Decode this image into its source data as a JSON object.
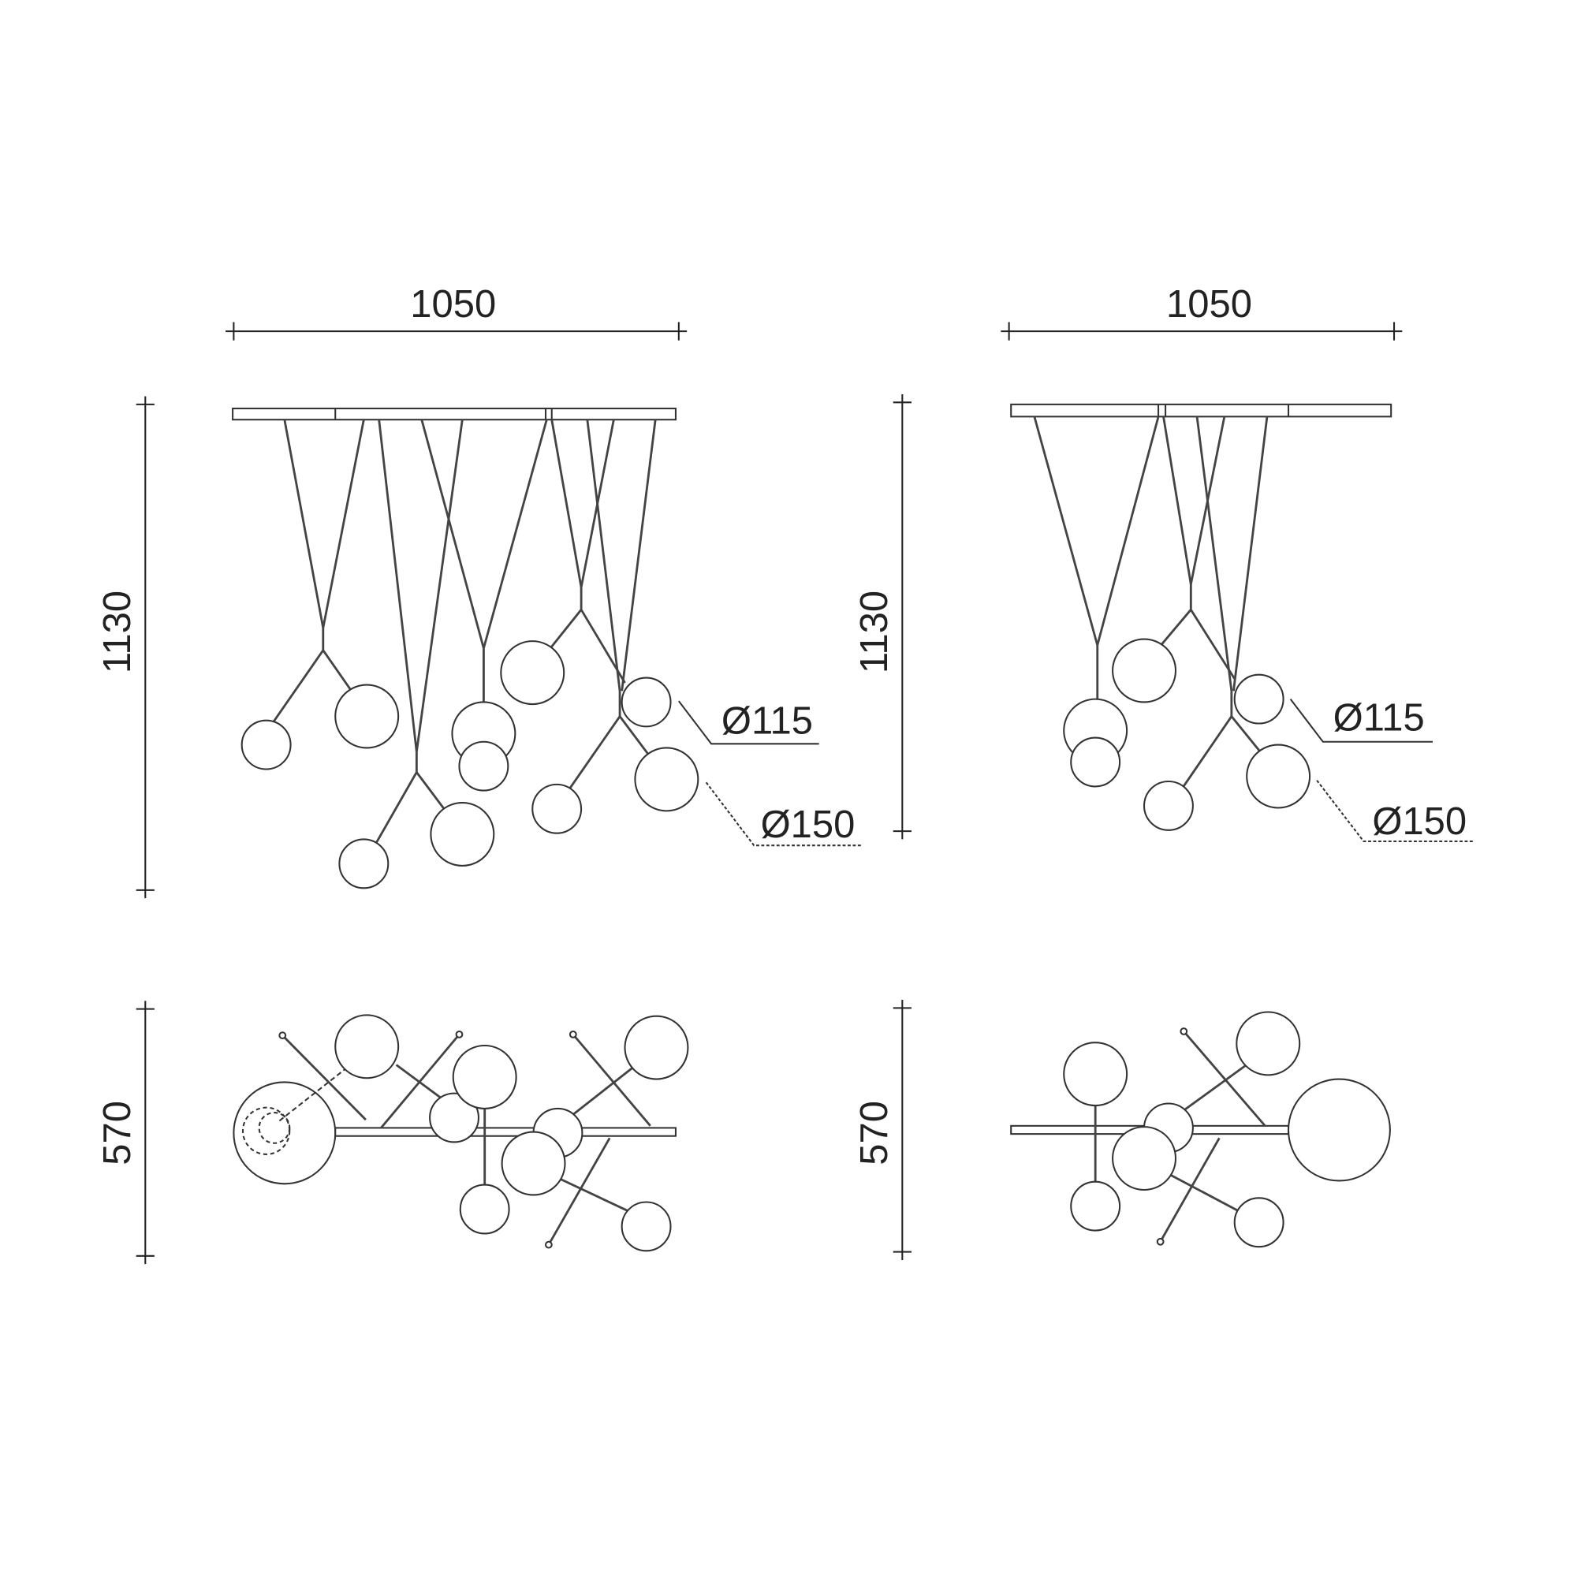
{
  "left_elevation": {
    "width_label": "1050",
    "height_label": "1130",
    "small_globe_label": "Ø115",
    "large_globe_label": "Ø150"
  },
  "right_elevation": {
    "width_label": "1050",
    "height_label": "1130",
    "small_globe_label": "Ø115",
    "large_globe_label": "Ø150"
  },
  "left_plan": {
    "depth_label": "570"
  },
  "right_plan": {
    "depth_label": "570"
  },
  "colors": {
    "line": "#333333",
    "background": "#ffffff"
  }
}
